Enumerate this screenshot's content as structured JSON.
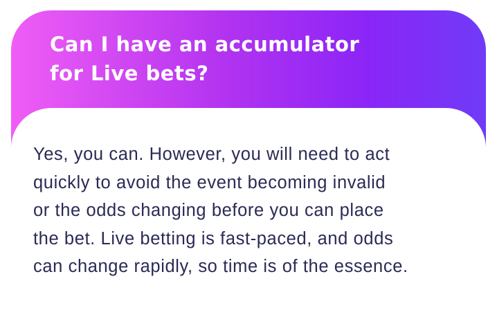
{
  "faq": {
    "question_line1": "Can I have an accumulator",
    "question_line2": "for Live bets?",
    "answer_lines": [
      "Yes, you can. However, you will need to act",
      "quickly to avoid the event becoming invalid",
      "or the odds changing before you can place",
      "the bet. Live betting is fast-paced, and odds",
      "can change rapidly, so time is of the essence."
    ]
  },
  "colors": {
    "gradient_start": "#f05df5",
    "gradient_mid": "#b233f0",
    "gradient_end": "#6f3bf7",
    "answer_text": "#2a2a55",
    "title_text": "#ffffff"
  }
}
